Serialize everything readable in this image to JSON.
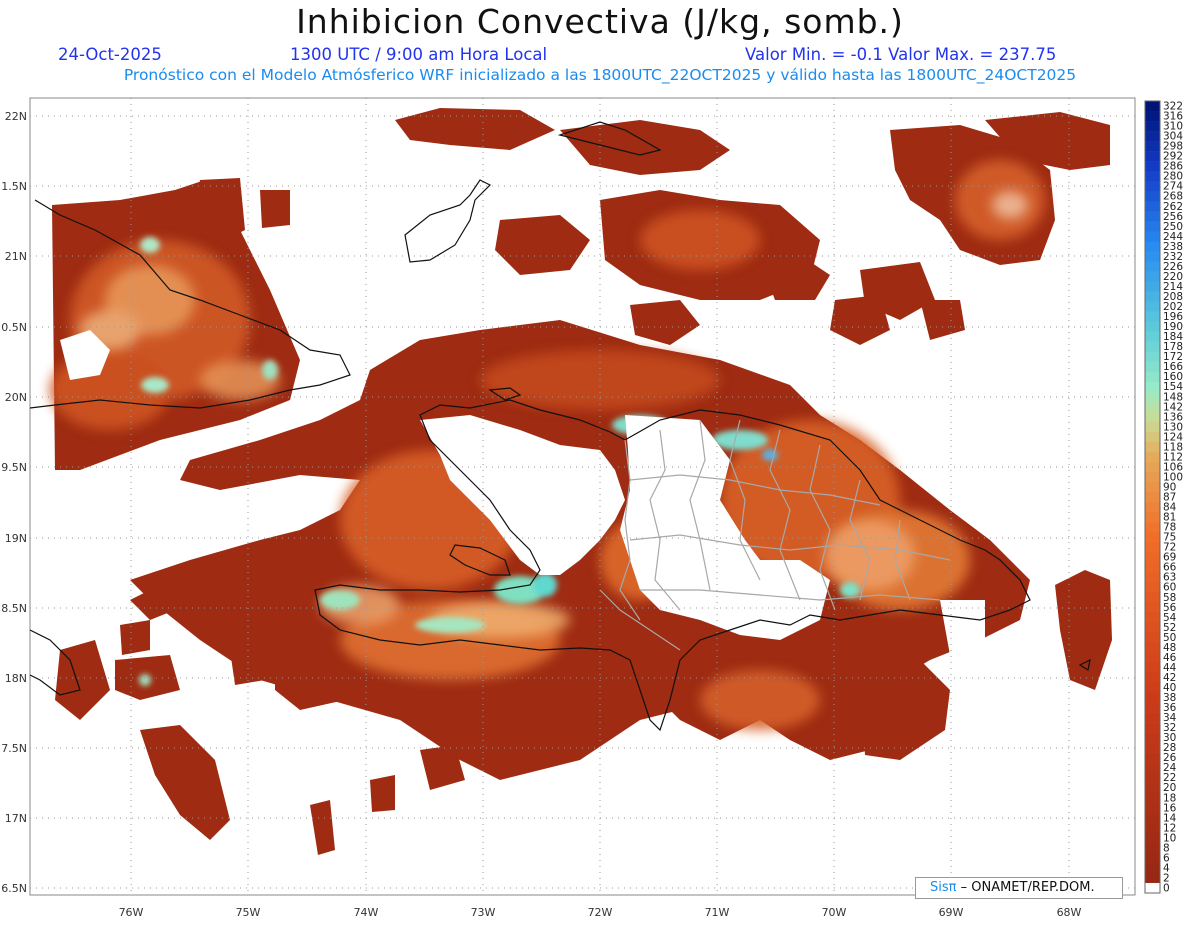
{
  "header": {
    "title": "Inhibicion Convectiva (J/kg, somb.)",
    "date": "24-Oct-2025",
    "time": "1300 UTC / 9:00 am Hora Local",
    "minmax": "Valor Min. = -0.1  Valor Max. = 237.75",
    "forecast": "Pronóstico con el Modelo Atmósferico WRF inicializado a las 1800UTC_22OCT2025 y válido hasta las  1800UTC_24OCT2025"
  },
  "axes": {
    "lat_labels": [
      "22N",
      "1.5N",
      "21N",
      "0.5N",
      "20N",
      "9.5N",
      "19N",
      "8.5N",
      "18N",
      "7.5N",
      "17N",
      "6.5N"
    ],
    "lon_labels": [
      "76W",
      "75W",
      "74W",
      "73W",
      "72W",
      "71W",
      "70W",
      "69W",
      "68W"
    ]
  },
  "colorbar": {
    "labels": [
      "322",
      "316",
      "310",
      "304",
      "298",
      "292",
      "286",
      "280",
      "274",
      "268",
      "262",
      "256",
      "250",
      "244",
      "238",
      "232",
      "226",
      "220",
      "214",
      "208",
      "202",
      "196",
      "190",
      "184",
      "178",
      "172",
      "166",
      "160",
      "154",
      "148",
      "142",
      "136",
      "130",
      "124",
      "118",
      "112",
      "106",
      "100",
      "90",
      "87",
      "84",
      "81",
      "78",
      "75",
      "72",
      "69",
      "66",
      "63",
      "60",
      "58",
      "56",
      "54",
      "52",
      "50",
      "48",
      "46",
      "44",
      "42",
      "40",
      "38",
      "36",
      "34",
      "32",
      "30",
      "28",
      "26",
      "24",
      "22",
      "20",
      "18",
      "16",
      "14",
      "12",
      "10",
      "8",
      "6",
      "4",
      "2",
      "0"
    ]
  },
  "logo": {
    "brand": "Sisπ",
    "text": " – ONAMET/REP.DOM."
  }
}
